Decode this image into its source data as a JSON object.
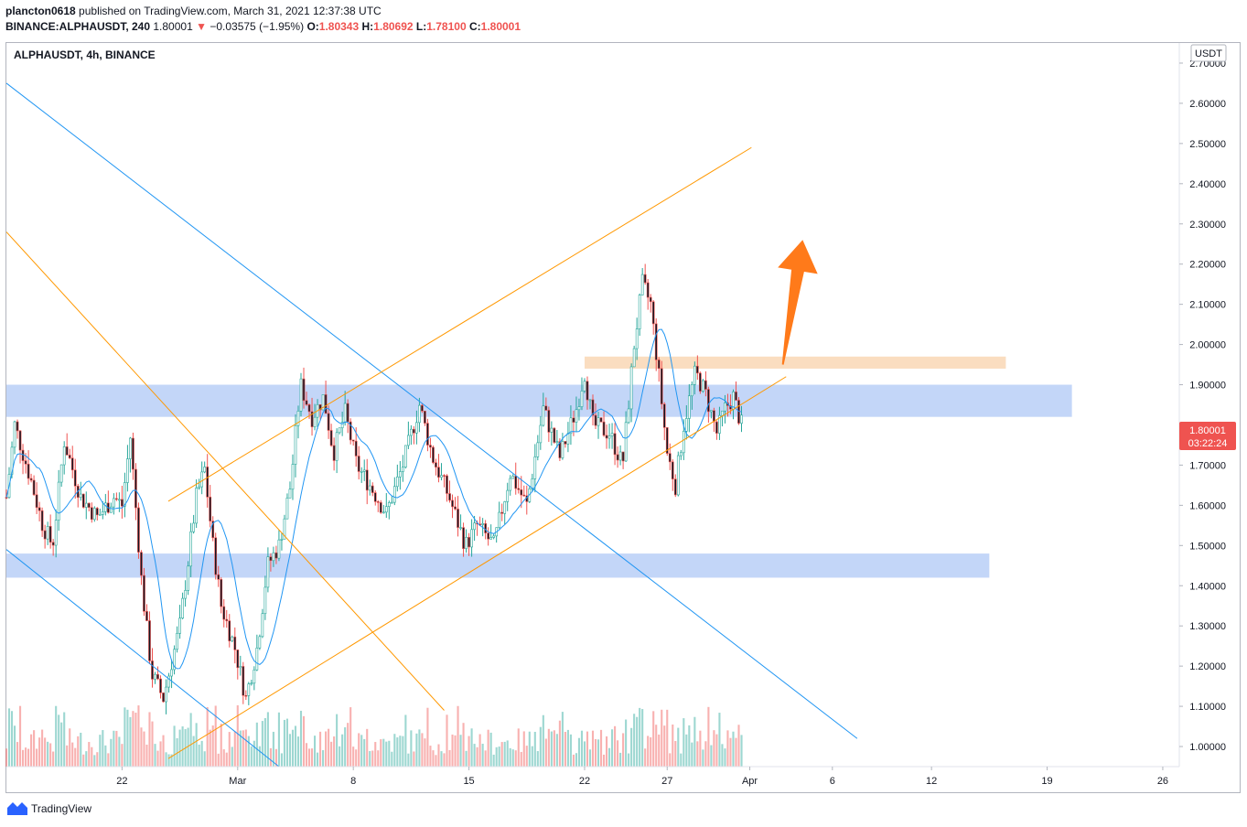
{
  "header": {
    "author": "plancton0618",
    "published_text": "published on TradingView.com, March 31, 2021 12:37:38 UTC",
    "symbol_line": "BINANCE:ALPHAUSDT, 240",
    "last_price": "1.80001",
    "change_arrow": "▼",
    "change_text": "−0.03575 (−1.95%)",
    "o_label": "O:",
    "o_val": "1.80343",
    "h_label": "H:",
    "h_val": "1.80692",
    "l_label": "L:",
    "l_val": "1.78100",
    "c_label": "C:",
    "c_val": "1.80001"
  },
  "chart_title": "ALPHAUSDT, 4h, BINANCE",
  "currency_label": "USDT",
  "price_tag": {
    "price": "1.80001",
    "countdown": "03:22:24",
    "color": "#ef5350"
  },
  "footer": {
    "brand": "TradingView",
    "logo_icon": "tradingview-logo-icon"
  },
  "colors": {
    "up": "#26a69a",
    "down": "#ef5350",
    "candle_body_up": "#ffffff",
    "candle_body_down": "#131722",
    "zone_blue": "#a9c4f5",
    "zone_orange": "#f8cfa5",
    "line_blue": "#2196f3",
    "line_orange": "#ff9800",
    "arrow": "#ff7a1a",
    "ma": "#2196f3"
  },
  "chart_data": {
    "type": "candlestick",
    "title": "ALPHAUSDT, 4h, BINANCE",
    "ylabel": "USDT",
    "ylim": [
      0.95,
      2.75
    ],
    "yticks": [
      "2.70000",
      "2.60000",
      "2.50000",
      "2.40000",
      "2.30000",
      "2.20000",
      "2.10000",
      "2.00000",
      "1.90000",
      "1.80000",
      "1.70000",
      "1.60000",
      "1.50000",
      "1.40000",
      "1.30000",
      "1.20000",
      "1.10000",
      "1.00000"
    ],
    "xticks": [
      {
        "label": "22",
        "day": 22
      },
      {
        "label": "Mar",
        "day": 29
      },
      {
        "label": "8",
        "day": 36
      },
      {
        "label": "15",
        "day": 43
      },
      {
        "label": "22",
        "day": 50
      },
      {
        "label": "27",
        "day": 55
      },
      {
        "label": "Apr",
        "day": 60
      },
      {
        "label": "6",
        "day": 65
      },
      {
        "label": "12",
        "day": 71
      },
      {
        "label": "19",
        "day": 78
      },
      {
        "label": "26",
        "day": 85
      }
    ],
    "xrange_days": [
      15,
      86
    ],
    "last_day": 59.5,
    "anchors": [
      {
        "day": 15.0,
        "price": 1.62
      },
      {
        "day": 15.5,
        "price": 1.8
      },
      {
        "day": 16.5,
        "price": 1.66
      },
      {
        "day": 17.2,
        "price": 1.55
      },
      {
        "day": 17.8,
        "price": 1.5
      },
      {
        "day": 18.5,
        "price": 1.76
      },
      {
        "day": 19.5,
        "price": 1.62
      },
      {
        "day": 20.5,
        "price": 1.57
      },
      {
        "day": 21.5,
        "price": 1.62
      },
      {
        "day": 22.0,
        "price": 1.6
      },
      {
        "day": 22.5,
        "price": 1.77
      },
      {
        "day": 23.2,
        "price": 1.4
      },
      {
        "day": 23.8,
        "price": 1.18
      },
      {
        "day": 24.5,
        "price": 1.12
      },
      {
        "day": 25.5,
        "price": 1.3
      },
      {
        "day": 26.5,
        "price": 1.62
      },
      {
        "day": 27.0,
        "price": 1.69
      },
      {
        "day": 27.5,
        "price": 1.5
      },
      {
        "day": 28.0,
        "price": 1.35
      },
      {
        "day": 28.8,
        "price": 1.25
      },
      {
        "day": 29.5,
        "price": 1.12
      },
      {
        "day": 30.2,
        "price": 1.25
      },
      {
        "day": 30.8,
        "price": 1.45
      },
      {
        "day": 31.5,
        "price": 1.5
      },
      {
        "day": 32.2,
        "price": 1.65
      },
      {
        "day": 32.8,
        "price": 1.9
      },
      {
        "day": 33.5,
        "price": 1.82
      },
      {
        "day": 34.2,
        "price": 1.87
      },
      {
        "day": 34.8,
        "price": 1.73
      },
      {
        "day": 35.5,
        "price": 1.83
      },
      {
        "day": 36.2,
        "price": 1.7
      },
      {
        "day": 37.0,
        "price": 1.65
      },
      {
        "day": 38.0,
        "price": 1.58
      },
      {
        "day": 39.0,
        "price": 1.7
      },
      {
        "day": 40.0,
        "price": 1.85
      },
      {
        "day": 40.8,
        "price": 1.72
      },
      {
        "day": 41.8,
        "price": 1.62
      },
      {
        "day": 42.8,
        "price": 1.5
      },
      {
        "day": 43.5,
        "price": 1.55
      },
      {
        "day": 44.5,
        "price": 1.5
      },
      {
        "day": 45.5,
        "price": 1.68
      },
      {
        "day": 46.5,
        "price": 1.6
      },
      {
        "day": 47.5,
        "price": 1.84
      },
      {
        "day": 48.5,
        "price": 1.72
      },
      {
        "day": 49.5,
        "price": 1.84
      },
      {
        "day": 50.0,
        "price": 1.93
      },
      {
        "day": 50.5,
        "price": 1.8
      },
      {
        "day": 51.5,
        "price": 1.78
      },
      {
        "day": 52.3,
        "price": 1.7
      },
      {
        "day": 53.0,
        "price": 2.0
      },
      {
        "day": 53.5,
        "price": 2.15
      },
      {
        "day": 54.0,
        "price": 2.1
      },
      {
        "day": 54.5,
        "price": 1.92
      },
      {
        "day": 55.0,
        "price": 1.73
      },
      {
        "day": 55.5,
        "price": 1.65
      },
      {
        "day": 56.0,
        "price": 1.8
      },
      {
        "day": 56.7,
        "price": 1.93
      },
      {
        "day": 57.3,
        "price": 1.88
      },
      {
        "day": 58.0,
        "price": 1.78
      },
      {
        "day": 58.5,
        "price": 1.84
      },
      {
        "day": 59.0,
        "price": 1.87
      },
      {
        "day": 59.5,
        "price": 1.8
      }
    ],
    "moving_average": {
      "type": "line",
      "color": "#2196f3",
      "note_free": true
    },
    "zones": [
      {
        "kind": "support-resistance",
        "color": "blue",
        "y_top": 1.9,
        "y_bottom": 1.82,
        "x_start_day": 15,
        "x_end_day": 79.5
      },
      {
        "kind": "support-resistance",
        "color": "blue",
        "y_top": 1.48,
        "y_bottom": 1.42,
        "x_start_day": 15,
        "x_end_day": 74.5
      },
      {
        "kind": "resistance",
        "color": "orange",
        "y_top": 1.97,
        "y_bottom": 1.94,
        "x_start_day": 50,
        "x_end_day": 75.5
      }
    ],
    "trendlines": [
      {
        "color": "blue",
        "from": {
          "day": 15.0,
          "price": 2.65
        },
        "to": {
          "day": 66.5,
          "price": 1.02
        }
      },
      {
        "color": "blue",
        "from": {
          "day": 15.0,
          "price": 1.49
        },
        "to": {
          "day": 31.5,
          "price": 0.95
        }
      },
      {
        "color": "orange",
        "from": {
          "day": 15.0,
          "price": 2.28
        },
        "to": {
          "day": 41.5,
          "price": 1.09
        }
      },
      {
        "color": "orange",
        "from": {
          "day": 24.8,
          "price": 0.97
        },
        "to": {
          "day": 62.2,
          "price": 1.92
        }
      },
      {
        "color": "orange",
        "from": {
          "day": 24.8,
          "price": 1.61
        },
        "to": {
          "day": 60.1,
          "price": 2.49
        }
      }
    ],
    "arrow": {
      "color": "orange",
      "from": {
        "day": 62.0,
        "price": 1.95
      },
      "to": {
        "day": 63.2,
        "price": 2.26
      }
    }
  }
}
